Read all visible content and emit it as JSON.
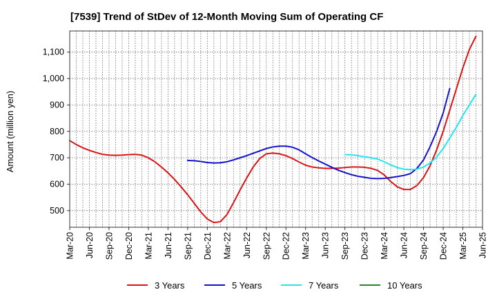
{
  "chart_data": {
    "type": "line",
    "title": "[7539]  Trend of StDev of 12-Month Moving Sum of Operating CF",
    "xlabel": "",
    "ylabel": "Amount (million yen)",
    "ylim": [
      437,
      1180
    ],
    "yticks": [
      500,
      600,
      700,
      800,
      900,
      1000,
      1100
    ],
    "ytick_labels": [
      "500",
      "600",
      "700",
      "800",
      "900",
      "1,000",
      "1,100"
    ],
    "grid": true,
    "legend_position": "bottom",
    "x_months": [
      "2020-03",
      "2020-04",
      "2020-05",
      "2020-06",
      "2020-07",
      "2020-08",
      "2020-09",
      "2020-10",
      "2020-11",
      "2020-12",
      "2021-01",
      "2021-02",
      "2021-03",
      "2021-04",
      "2021-05",
      "2021-06",
      "2021-07",
      "2021-08",
      "2021-09",
      "2021-10",
      "2021-11",
      "2021-12",
      "2022-01",
      "2022-02",
      "2022-03",
      "2022-04",
      "2022-05",
      "2022-06",
      "2022-07",
      "2022-08",
      "2022-09",
      "2022-10",
      "2022-11",
      "2022-12",
      "2023-01",
      "2023-02",
      "2023-03",
      "2023-04",
      "2023-05",
      "2023-06",
      "2023-07",
      "2023-08",
      "2023-09",
      "2023-10",
      "2023-11",
      "2023-12",
      "2024-01",
      "2024-02",
      "2024-03",
      "2024-04",
      "2024-05",
      "2024-06",
      "2024-07",
      "2024-08",
      "2024-09",
      "2024-10",
      "2024-11",
      "2024-12",
      "2025-01",
      "2025-02",
      "2025-03",
      "2025-04",
      "2025-05",
      "2025-06"
    ],
    "xtick_labels": [
      "Mar-20",
      "Jun-20",
      "Sep-20",
      "Dec-20",
      "Mar-21",
      "Jun-21",
      "Sep-21",
      "Dec-21",
      "Mar-22",
      "Jun-22",
      "Sep-22",
      "Dec-22",
      "Mar-23",
      "Jun-23",
      "Sep-23",
      "Dec-23",
      "Mar-24",
      "Jun-24",
      "Sep-24",
      "Dec-24",
      "Mar-25",
      "Jun-25"
    ],
    "series": [
      {
        "name": "3 Years",
        "color": "#dd1111",
        "start_index": 0,
        "values": [
          765,
          750,
          738,
          728,
          720,
          713,
          710,
          709,
          710,
          712,
          713,
          710,
          700,
          685,
          665,
          643,
          618,
          590,
          560,
          528,
          495,
          468,
          455,
          458,
          485,
          530,
          578,
          623,
          665,
          697,
          715,
          718,
          715,
          708,
          697,
          684,
          672,
          665,
          662,
          660,
          660,
          661,
          663,
          665,
          665,
          664,
          660,
          652,
          635,
          610,
          590,
          580,
          580,
          595,
          625,
          670,
          730,
          800,
          880,
          960,
          1040,
          1110,
          1160
        ]
      },
      {
        "name": "5 Years",
        "color": "#1111cc",
        "start_index": 18,
        "values": [
          690,
          689,
          686,
          682,
          680,
          681,
          685,
          692,
          700,
          708,
          717,
          726,
          735,
          741,
          744,
          744,
          740,
          730,
          715,
          701,
          688,
          676,
          664,
          653,
          644,
          636,
          630,
          626,
          622,
          621,
          622,
          625,
          629,
          633,
          640,
          660,
          692,
          742,
          800,
          870,
          962
        ]
      },
      {
        "name": "7 Years",
        "color": "#22e5ee",
        "start_index": 42,
        "values": [
          712,
          711,
          708,
          704,
          700,
          695,
          685,
          673,
          663,
          657,
          655,
          657,
          665,
          680,
          703,
          735,
          775,
          815,
          860,
          900,
          940
        ]
      },
      {
        "name": "10 Years",
        "color": "#228822",
        "start_index": 0,
        "values": []
      }
    ]
  }
}
